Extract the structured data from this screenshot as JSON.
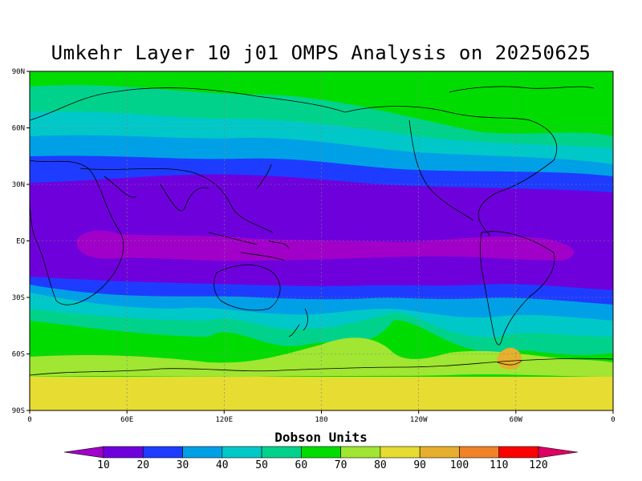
{
  "title": "Umkehr Layer 10 j01 OMPS Analysis on 20250625",
  "lat_labels": [
    "90N",
    "60N",
    "30N",
    "EQ",
    "30S",
    "60S",
    "90S"
  ],
  "lon_labels": [
    "0",
    "60E",
    "120E",
    "180",
    "120W",
    "60W",
    "0"
  ],
  "colorbar": {
    "title": "Dobson Units",
    "levels": [
      "10",
      "20",
      "30",
      "40",
      "50",
      "60",
      "70",
      "80",
      "90",
      "100",
      "110",
      "120"
    ],
    "colors": [
      "#a000c8",
      "#6e00dc",
      "#1e3cff",
      "#00a0e6",
      "#00c8c8",
      "#00d28c",
      "#00dc00",
      "#a0e632",
      "#e6dc32",
      "#e6af2d",
      "#f08228",
      "#fa0000",
      "#dc0064"
    ]
  },
  "map_data": {
    "projection": "cylindrical equidistant",
    "lon_range": [
      0,
      360
    ],
    "lat_range": [
      -90,
      90
    ],
    "units": "Dobson Units",
    "features": [
      "coastlines",
      "dotted lat/lon grid"
    ]
  }
}
